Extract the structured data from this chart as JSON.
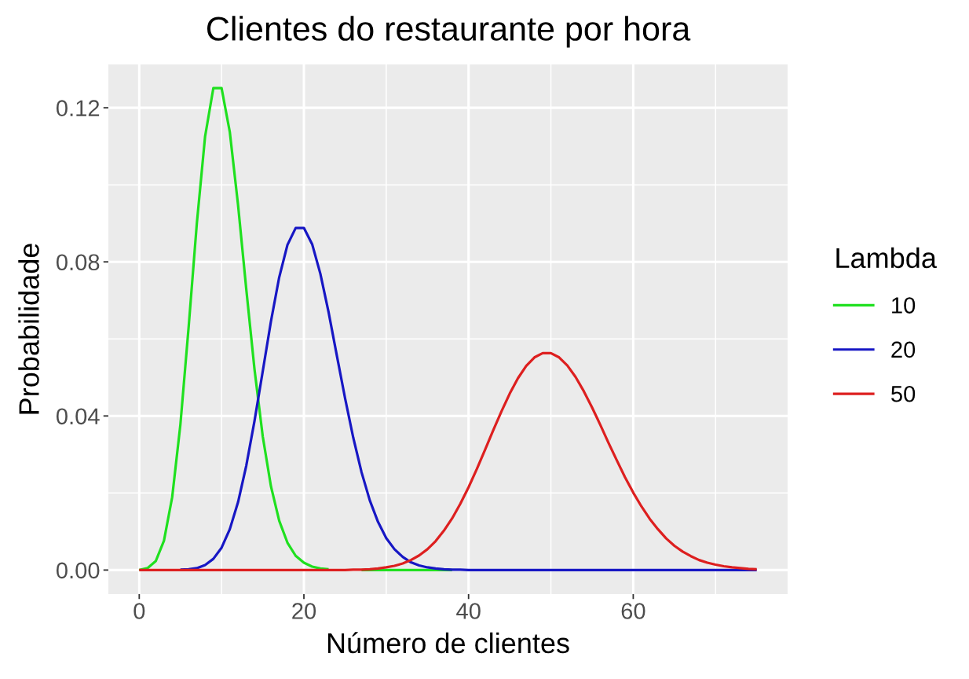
{
  "chart_data": {
    "type": "line",
    "title": "Clientes do restaurante por hora",
    "xlabel": "Número de clientes",
    "ylabel": "Probabilidade",
    "legend_title": "Lambda",
    "legend": "right",
    "grid": true,
    "xlim": [
      -3.75,
      78.75
    ],
    "ylim": [
      -0.00625,
      0.13125
    ],
    "xticks": [
      0,
      20,
      40,
      60
    ],
    "yticks": [
      {
        "value": 0,
        "label": "0.00"
      },
      0.04,
      0.08,
      0.12
    ],
    "x": [
      0,
      1,
      2,
      3,
      4,
      5,
      6,
      7,
      8,
      9,
      10,
      11,
      12,
      13,
      14,
      15,
      16,
      17,
      18,
      19,
      20,
      21,
      22,
      23,
      24,
      25,
      26,
      27,
      28,
      29,
      30,
      31,
      32,
      33,
      34,
      35,
      36,
      37,
      38,
      39,
      40,
      41,
      42,
      43,
      44,
      45,
      46,
      47,
      48,
      49,
      50,
      51,
      52,
      53,
      54,
      55,
      56,
      57,
      58,
      59,
      60,
      61,
      62,
      63,
      64,
      65,
      66,
      67,
      68,
      69,
      70,
      71,
      72,
      73,
      74,
      75
    ],
    "series": [
      {
        "name": "10",
        "color": "#1fe01f",
        "values": [
          0.0,
          0.0005,
          0.0023,
          0.0076,
          0.0189,
          0.0378,
          0.0631,
          0.0901,
          0.1126,
          0.1251,
          0.1251,
          0.1137,
          0.0948,
          0.0729,
          0.0521,
          0.0347,
          0.0217,
          0.0128,
          0.0071,
          0.0037,
          0.0019,
          0.0009,
          0.0004,
          0.0002,
          null,
          null,
          null,
          0,
          0,
          0,
          0,
          0,
          0,
          0,
          0,
          0,
          0,
          0,
          0,
          null,
          null,
          null,
          null,
          null,
          null,
          null,
          null,
          null,
          null,
          null,
          null,
          null,
          null,
          null,
          null,
          null,
          null,
          null,
          null,
          null,
          null,
          null,
          null,
          null,
          null,
          null,
          null,
          null,
          null,
          null,
          null,
          null,
          null,
          null,
          null,
          null
        ]
      },
      {
        "name": "20",
        "color": "#1717c4",
        "values": [
          null,
          null,
          null,
          null,
          null,
          0.0001,
          0.0002,
          0.0005,
          0.0013,
          0.0029,
          0.0058,
          0.0106,
          0.0176,
          0.0271,
          0.0387,
          0.0516,
          0.0646,
          0.076,
          0.0844,
          0.0888,
          0.0888,
          0.0846,
          0.0769,
          0.0669,
          0.0557,
          0.0446,
          0.0343,
          0.0254,
          0.0181,
          0.0125,
          0.0083,
          0.0054,
          0.0034,
          0.002,
          0.0012,
          0.0007,
          0.0004,
          0.0002,
          0.0001,
          0.0001,
          0,
          0,
          0,
          0,
          0,
          0,
          0,
          0,
          0,
          0,
          0,
          0,
          0,
          0,
          0,
          0,
          0,
          0,
          0,
          0,
          0,
          0,
          0,
          0,
          0,
          0,
          0,
          0,
          0,
          0,
          0,
          0,
          0,
          0,
          0,
          0
        ]
      },
      {
        "name": "50",
        "color": "#dd1f1f",
        "values": [
          0,
          0,
          0,
          0,
          0,
          0,
          0,
          0,
          0,
          0,
          0,
          0,
          0,
          0,
          0,
          0,
          0,
          0,
          0,
          0,
          0,
          0,
          0,
          0,
          0,
          0,
          0.0001,
          0.0001,
          0.0002,
          0.0004,
          0.0007,
          0.0011,
          0.0017,
          0.0026,
          0.0038,
          0.0054,
          0.0075,
          0.0102,
          0.0134,
          0.0172,
          0.0215,
          0.0262,
          0.0312,
          0.0363,
          0.0412,
          0.0458,
          0.0498,
          0.053,
          0.0552,
          0.0563,
          0.0563,
          0.0552,
          0.0531,
          0.0501,
          0.0464,
          0.0422,
          0.0377,
          0.033,
          0.0285,
          0.0241,
          0.0201,
          0.0165,
          0.0133,
          0.0106,
          0.0082,
          0.0063,
          0.0048,
          0.0036,
          0.0026,
          0.0019,
          0.0014,
          0.001,
          0.0007,
          0.0005,
          0.0003,
          0.0002
        ]
      }
    ]
  }
}
